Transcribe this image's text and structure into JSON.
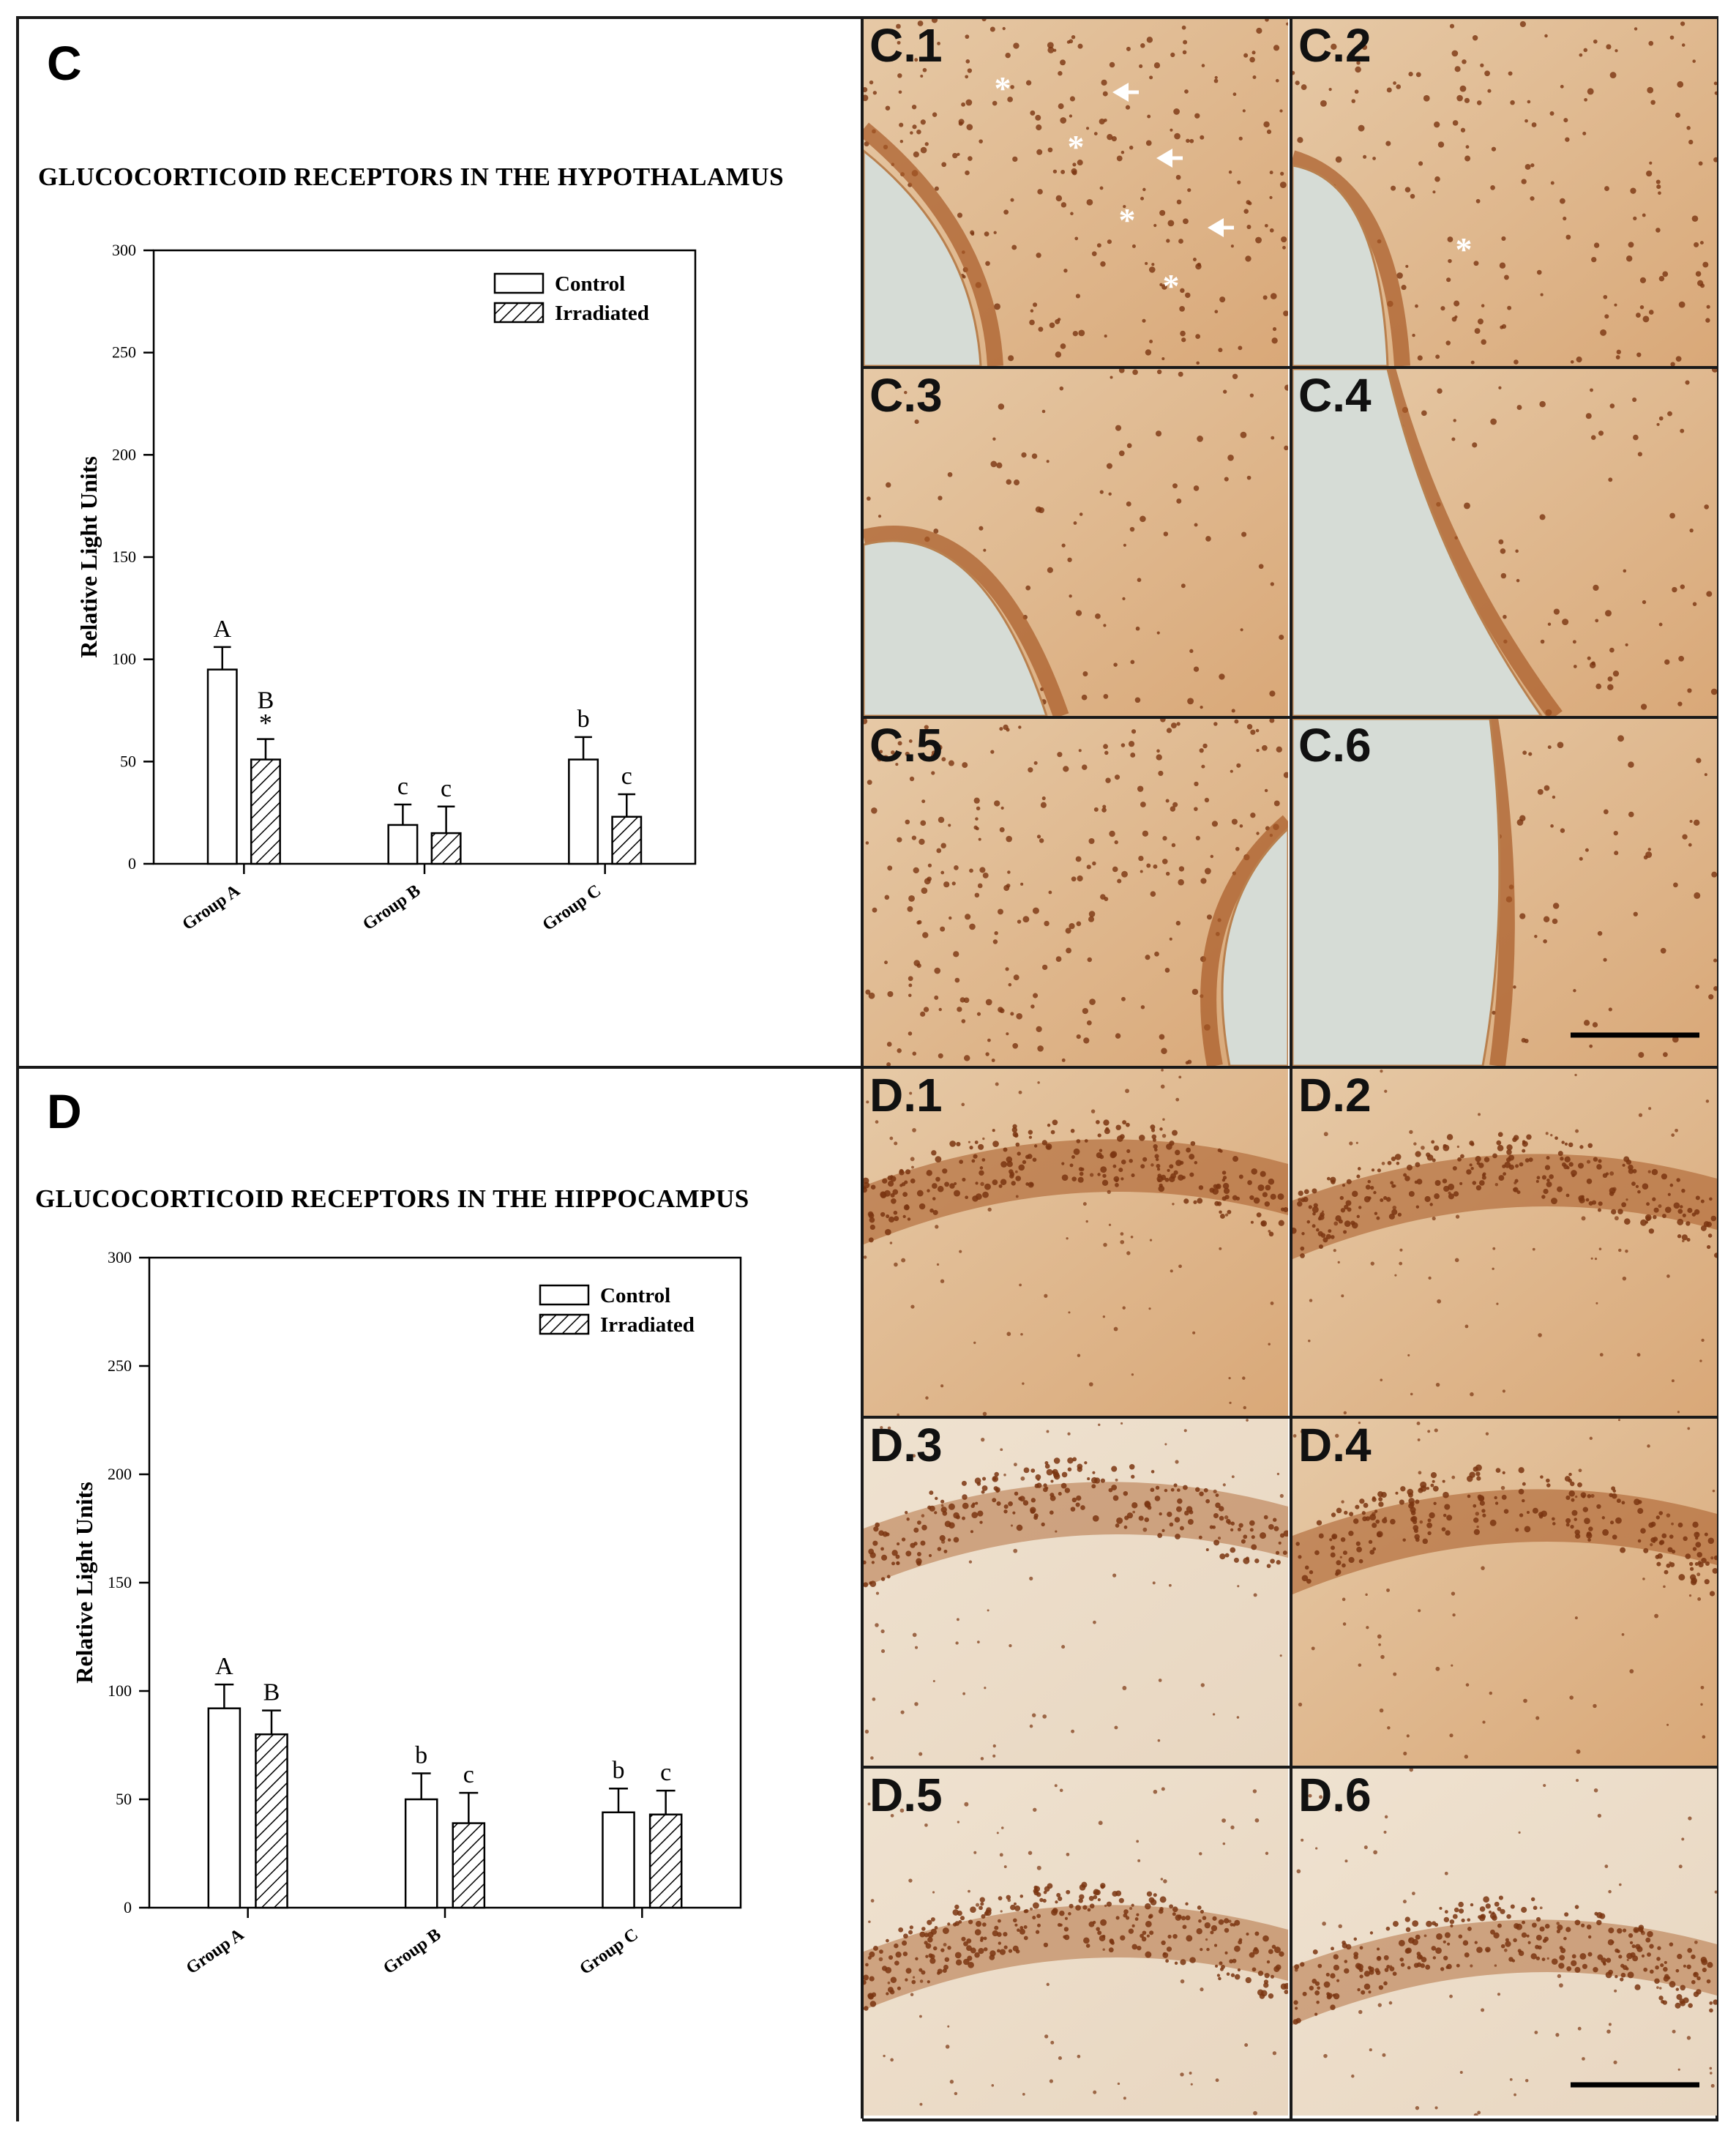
{
  "panels": [
    {
      "letter": "C",
      "title": "GLUCOCORTICOID RECEPTORS IN THE HYPOTHALAMUS",
      "image_labels": [
        "C.1",
        "C.2",
        "C.3",
        "C.4",
        "C.5",
        "C.6"
      ]
    },
    {
      "letter": "D",
      "title": "GLUCOCORTICOID RECEPTORS IN THE HIPPOCAMPUS",
      "image_labels": [
        "D.1",
        "D.2",
        "D.3",
        "D.4",
        "D.5",
        "D.6"
      ]
    }
  ],
  "chart_data": [
    {
      "type": "bar",
      "title": "GLUCOCORTICOID RECEPTORS IN THE HYPOTHALAMUS",
      "xlabel": "",
      "ylabel": "Relative Light Units",
      "ylim": [
        0,
        300
      ],
      "yticks": [
        0,
        50,
        100,
        150,
        200,
        250,
        300
      ],
      "categories": [
        "Group A",
        "Group B",
        "Group C"
      ],
      "legend_position": "top-right",
      "series": [
        {
          "name": "Control",
          "pattern": "open",
          "values": [
            95,
            19,
            51
          ],
          "errors": [
            11,
            10,
            11
          ],
          "annotations": [
            "A",
            "c",
            "b"
          ]
        },
        {
          "name": "Irradiated",
          "pattern": "hatched",
          "values": [
            51,
            15,
            23
          ],
          "errors": [
            10,
            13,
            11
          ],
          "annotations": [
            "B *",
            "c",
            "c"
          ]
        }
      ]
    },
    {
      "type": "bar",
      "title": "GLUCOCORTICOID RECEPTORS IN THE HIPPOCAMPUS",
      "xlabel": "",
      "ylabel": "Relative Light Units",
      "ylim": [
        0,
        300
      ],
      "yticks": [
        0,
        50,
        100,
        150,
        200,
        250,
        300
      ],
      "categories": [
        "Group A",
        "Group B",
        "Group C"
      ],
      "legend_position": "top-right",
      "series": [
        {
          "name": "Control",
          "pattern": "open",
          "values": [
            92,
            50,
            44
          ],
          "errors": [
            11,
            12,
            11
          ],
          "annotations": [
            "A",
            "b",
            "b"
          ]
        },
        {
          "name": "Irradiated",
          "pattern": "hatched",
          "values": [
            80,
            39,
            43
          ],
          "errors": [
            11,
            14,
            11
          ],
          "annotations": [
            "B",
            "c",
            "c"
          ]
        }
      ]
    }
  ],
  "colors": {
    "frame": "#1a1a1a",
    "tissue_light": "#e6c9a6",
    "tissue_dark": "#a85a26",
    "nucleus": "#7a3510",
    "ventricle": "#d6dcd6",
    "marker": "#ffffff"
  }
}
